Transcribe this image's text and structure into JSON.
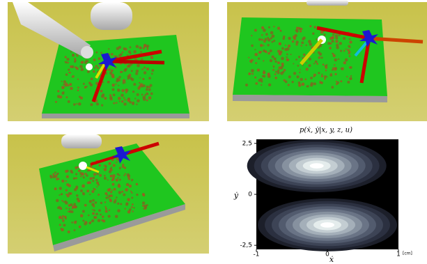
{
  "chart_data": {
    "type": "contour",
    "title": "p(ẋ, ẏ|x, y, z, u)",
    "x_label": "ẋ",
    "y_label": "ẏ",
    "x_unit": "[cm]",
    "xlim": [
      -1,
      1
    ],
    "ylim": [
      -2.7,
      2.7
    ],
    "xticks": [
      -1,
      0,
      1
    ],
    "yticks": [
      {
        "value": 2.5,
        "label": "2,5"
      },
      0,
      {
        "value": -2.5,
        "label": "-2,5"
      }
    ],
    "peaks": {
      "x": [
        -0.15,
        0
      ],
      "y": [
        1.4,
        -1.5
      ]
    },
    "background": "#000000"
  }
}
